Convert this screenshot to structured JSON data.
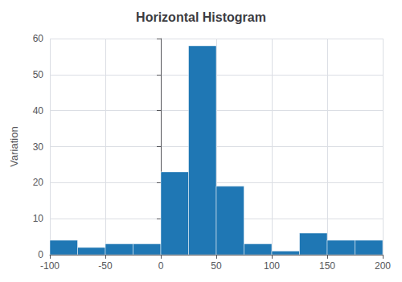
{
  "chart_data": {
    "type": "histogram",
    "title": "Horizontal Histogram",
    "ylabel": "Variation",
    "bins": [
      -100,
      -75,
      -50,
      -25,
      0,
      25,
      50,
      75,
      100,
      125,
      150,
      175,
      200
    ],
    "values": [
      4,
      2,
      3,
      3,
      23,
      58,
      19,
      3,
      1,
      6,
      4,
      4
    ],
    "color": "#1f77b4",
    "xlim": [
      -100,
      200
    ],
    "xticks": [
      -100,
      -50,
      0,
      50,
      100,
      150,
      200
    ],
    "ylim": [
      0,
      60
    ],
    "yticks": [
      0,
      10,
      20,
      30,
      40,
      50,
      60
    ],
    "grid": true
  }
}
